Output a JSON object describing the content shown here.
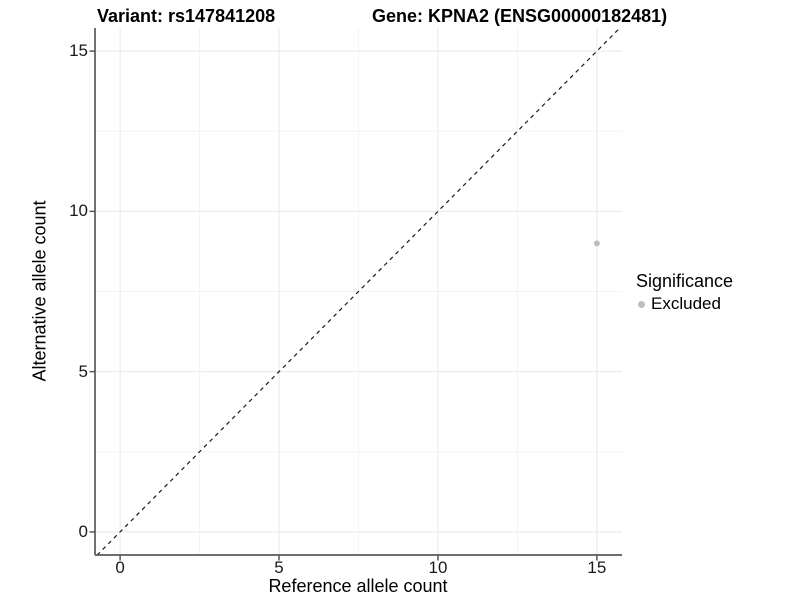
{
  "chart_data": {
    "type": "scatter",
    "title_left": "Variant: rs147841208",
    "title_right": "Gene: KPNA2 (ENSG00000182481)",
    "xlabel": "Reference allele count",
    "ylabel": "Alternative allele count",
    "xlim": [
      -0.79,
      15.79
    ],
    "ylim": [
      -0.72,
      15.72
    ],
    "x_ticks": [
      0,
      5,
      10,
      15
    ],
    "y_ticks": [
      0,
      5,
      10,
      15
    ],
    "x_tick_labels": [
      "0",
      "5",
      "10",
      "15"
    ],
    "y_tick_labels": [
      "0",
      "5",
      "10",
      "15"
    ],
    "x_minor_ticks": [
      2.5,
      7.5,
      12.5
    ],
    "y_minor_ticks": [
      2.5,
      7.5,
      12.5
    ],
    "grid": {
      "major_color": "#e8e8e8",
      "minor_color": "#f4f4f4",
      "background": "#ffffff"
    },
    "axis_line_color": "#595959",
    "tick_text_color": "#1a1a1a",
    "reference_line": {
      "kind": "identity y=x",
      "style": "dashed",
      "color": "#1a1a1a"
    },
    "series": [
      {
        "name": "Excluded",
        "color": "#bebebe",
        "points": [
          {
            "x": 15,
            "y": 9
          }
        ]
      }
    ],
    "legend": {
      "title": "Significance",
      "position": "right",
      "items": [
        {
          "label": "Excluded",
          "color": "#bebebe"
        }
      ]
    }
  }
}
